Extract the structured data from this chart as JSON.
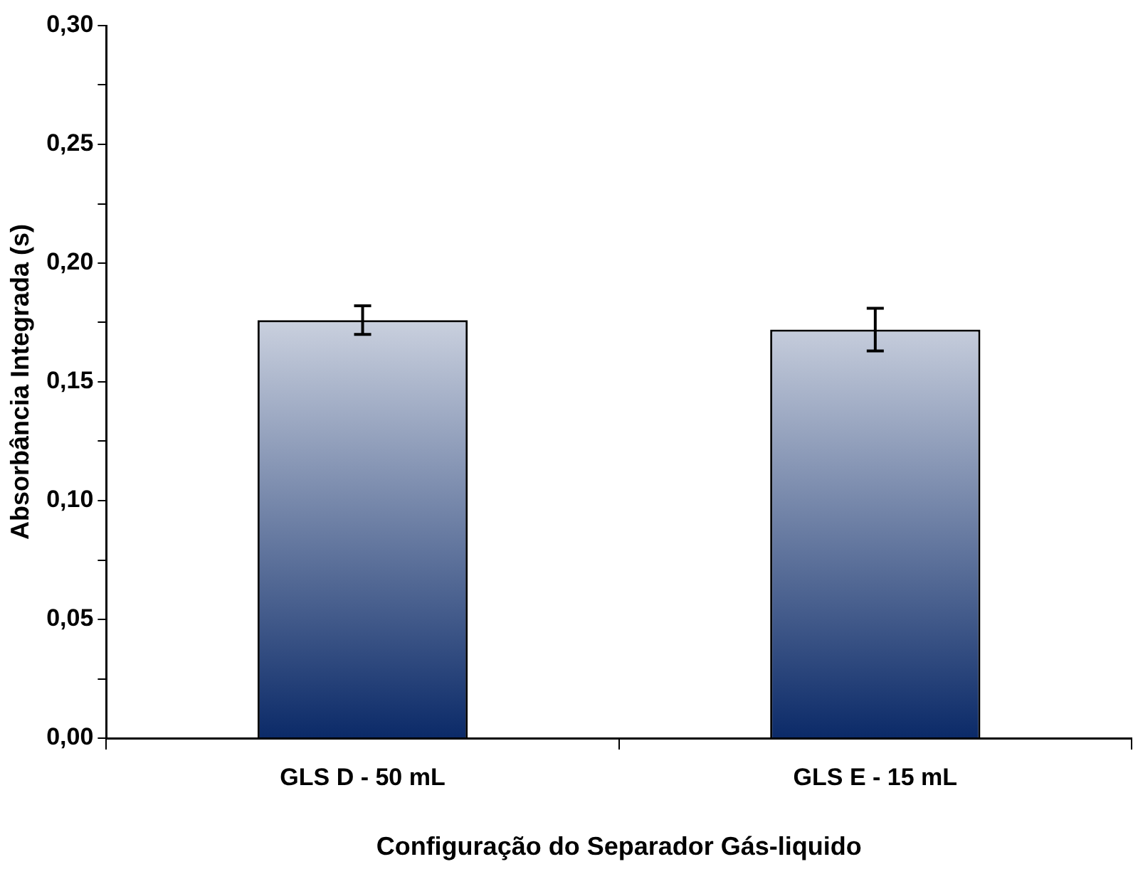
{
  "chart_data": {
    "type": "bar",
    "xlabel": "Configuração do Separador Gás-liquido",
    "ylabel": "Absorbância Integrada (s)",
    "categories": [
      "GLS D - 50 mL",
      "GLS E - 15 mL"
    ],
    "values": [
      0.176,
      0.172
    ],
    "errors": [
      0.006,
      0.009
    ],
    "color": "#0b2a68",
    "ylim": [
      0,
      0.3
    ],
    "yticks": [
      {
        "value": 0,
        "label": "0,00"
      },
      {
        "value": 0.025,
        "label": null
      },
      {
        "value": 0.05,
        "label": "0,05"
      },
      {
        "value": 0.075,
        "label": null
      },
      {
        "value": 0.1,
        "label": "0,10"
      },
      {
        "value": 0.125,
        "label": null
      },
      {
        "value": 0.15,
        "label": "0,15"
      },
      {
        "value": 0.175,
        "label": null
      },
      {
        "value": 0.2,
        "label": "0,20"
      },
      {
        "value": 0.225,
        "label": null
      },
      {
        "value": 0.25,
        "label": "0,25"
      },
      {
        "value": 0.275,
        "label": null
      },
      {
        "value": 0.3,
        "label": "0,30"
      }
    ],
    "grid": false,
    "legend": false
  }
}
